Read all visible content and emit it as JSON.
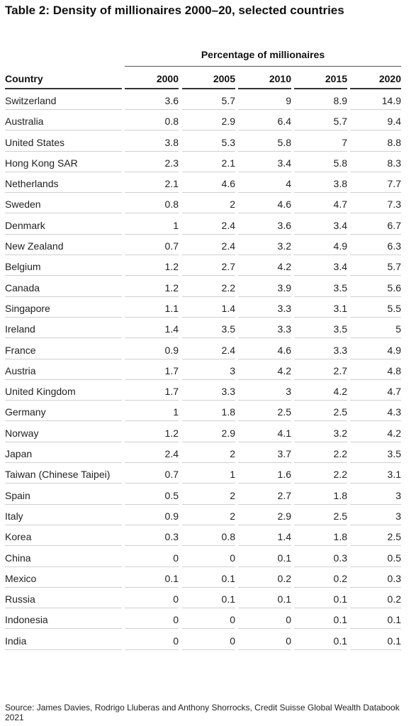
{
  "title": "Table 2: Density of millionaires 2000–20, selected countries",
  "group_header": "Percentage of millionaires",
  "columns": [
    "Country",
    "2000",
    "2005",
    "2010",
    "2015",
    "2020"
  ],
  "rows": [
    {
      "country": "Switzerland",
      "values": [
        "3.6",
        "5.7",
        "9",
        "8.9",
        "14.9"
      ]
    },
    {
      "country": "Australia",
      "values": [
        "0.8",
        "2.9",
        "6.4",
        "5.7",
        "9.4"
      ]
    },
    {
      "country": "United States",
      "values": [
        "3.8",
        "5.3",
        "5.8",
        "7",
        "8.8"
      ]
    },
    {
      "country": "Hong Kong SAR",
      "values": [
        "2.3",
        "2.1",
        "3.4",
        "5.8",
        "8.3"
      ]
    },
    {
      "country": "Netherlands",
      "values": [
        "2.1",
        "4.6",
        "4",
        "3.8",
        "7.7"
      ]
    },
    {
      "country": "Sweden",
      "values": [
        "0.8",
        "2",
        "4.6",
        "4.7",
        "7.3"
      ]
    },
    {
      "country": "Denmark",
      "values": [
        "1",
        "2.4",
        "3.6",
        "3.4",
        "6.7"
      ]
    },
    {
      "country": "New Zealand",
      "values": [
        "0.7",
        "2.4",
        "3.2",
        "4.9",
        "6.3"
      ]
    },
    {
      "country": "Belgium",
      "values": [
        "1.2",
        "2.7",
        "4.2",
        "3.4",
        "5.7"
      ]
    },
    {
      "country": "Canada",
      "values": [
        "1.2",
        "2.2",
        "3.9",
        "3.5",
        "5.6"
      ]
    },
    {
      "country": "Singapore",
      "values": [
        "1.1",
        "1.4",
        "3.3",
        "3.1",
        "5.5"
      ]
    },
    {
      "country": "Ireland",
      "values": [
        "1.4",
        "3.5",
        "3.3",
        "3.5",
        "5"
      ]
    },
    {
      "country": "France",
      "values": [
        "0.9",
        "2.4",
        "4.6",
        "3.3",
        "4.9"
      ]
    },
    {
      "country": "Austria",
      "values": [
        "1.7",
        "3",
        "4.2",
        "2.7",
        "4.8"
      ]
    },
    {
      "country": "United Kingdom",
      "values": [
        "1.7",
        "3.3",
        "3",
        "4.2",
        "4.7"
      ]
    },
    {
      "country": "Germany",
      "values": [
        "1",
        "1.8",
        "2.5",
        "2.5",
        "4.3"
      ]
    },
    {
      "country": "Norway",
      "values": [
        "1.2",
        "2.9",
        "4.1",
        "3.2",
        "4.2"
      ]
    },
    {
      "country": "Japan",
      "values": [
        "2.4",
        "2",
        "3.7",
        "2.2",
        "3.5"
      ]
    },
    {
      "country": "Taiwan (Chinese Taipei)",
      "values": [
        "0.7",
        "1",
        "1.6",
        "2.2",
        "3.1"
      ]
    },
    {
      "country": "Spain",
      "values": [
        "0.5",
        "2",
        "2.7",
        "1.8",
        "3"
      ]
    },
    {
      "country": "Italy",
      "values": [
        "0.9",
        "2",
        "2.9",
        "2.5",
        "3"
      ]
    },
    {
      "country": "Korea",
      "values": [
        "0.3",
        "0.8",
        "1.4",
        "1.8",
        "2.5"
      ]
    },
    {
      "country": "China",
      "values": [
        "0",
        "0",
        "0.1",
        "0.3",
        "0.5"
      ]
    },
    {
      "country": "Mexico",
      "values": [
        "0.1",
        "0.1",
        "0.2",
        "0.2",
        "0.3"
      ]
    },
    {
      "country": "Russia",
      "values": [
        "0",
        "0.1",
        "0.1",
        "0.1",
        "0.2"
      ]
    },
    {
      "country": "Indonesia",
      "values": [
        "0",
        "0",
        "0",
        "0.1",
        "0.1"
      ]
    },
    {
      "country": "India",
      "values": [
        "0",
        "0",
        "0",
        "0.1",
        "0.1"
      ]
    }
  ],
  "source": "Source: James Davies, Rodrigo Lluberas and Anthony Shorrocks, Credit Suisse Global Wealth Databook 2021"
}
